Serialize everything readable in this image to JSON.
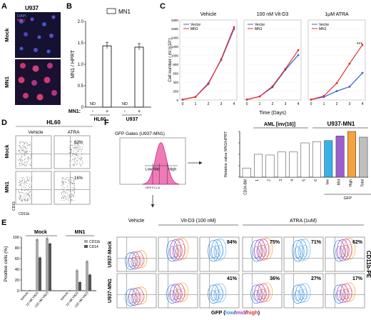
{
  "panels": {
    "A": {
      "letter": "A",
      "cell_line": "U937",
      "legend": [
        "DAPI",
        "MN1"
      ],
      "rows": [
        "Mock",
        "MN1"
      ],
      "legend_colors": [
        "#3b5cff",
        "#ff2a5a"
      ]
    },
    "B": {
      "letter": "B",
      "legend": "MN1",
      "ylabel": "MN1 / HPRT",
      "yticks": [
        "0",
        "0.5",
        "1.0",
        "1.5",
        "2.0"
      ],
      "nd": "ND",
      "row_label": "MN1:",
      "signs": [
        "-",
        "+",
        "-",
        "+"
      ],
      "groups": [
        "HL60",
        "U937"
      ]
    },
    "C": {
      "letter": "C",
      "xlabel": "Time (Days)",
      "ylabel": "Cell number / ml (x10⁵)",
      "legend": [
        "Vector",
        "MN1"
      ],
      "titles": [
        "Vehicle",
        "100 nM Vit-D3",
        "1μM ATRA"
      ],
      "yticks": [
        "0",
        "200",
        "400",
        "600",
        "800",
        "1000",
        "1200",
        "1400",
        "1600",
        "1800"
      ],
      "xticks": [
        "0",
        "1",
        "2",
        "3",
        "4"
      ],
      "sig": "***"
    },
    "D": {
      "letter": "D",
      "cell_line": "HL60",
      "cols": [
        "Vehicle",
        "ATRA"
      ],
      "rows": [
        "Mock",
        "MN1"
      ],
      "pcts": [
        "62%",
        "16%"
      ],
      "ylabel": "CD15",
      "xlabel": "CD11b"
    },
    "E": {
      "letter": "E",
      "groups": [
        "Mock",
        "MN1"
      ],
      "ylabel": "Positive cells (%)",
      "legend": [
        "CD11b",
        "CD14"
      ],
      "yticks": [
        "0",
        "20",
        "40",
        "60",
        "80",
        "100"
      ],
      "xticks": [
        "Vehicle",
        "10 nM VitD3",
        "100 nM VitD3",
        "Vehicle",
        "10 nM VitD3",
        "100 nM VitD3"
      ]
    },
    "F": {
      "letter": "F",
      "gate_title": "GFP Gates (U937-MN1)",
      "gates": [
        "Low",
        "Mid",
        "High"
      ],
      "gate_xlabel": "GFP FL1-A",
      "bar_header_aml": "AML [inv(16)]",
      "bar_header_u937": "U937-MN1",
      "bar_ylabel": "Relative value MN1/HPRT",
      "bar_xticks": [
        "CD34-BM",
        "1",
        "2",
        "3",
        "4",
        "5",
        "6",
        "low",
        "Mid",
        "High",
        "Total"
      ],
      "bar_gfp": "GFP",
      "flow_headers": [
        "Vehicle",
        "Vit-D3 (100 nM)",
        "ATRA (1uM)"
      ],
      "flow_rows": [
        "U937-Mock",
        "U937-MN1"
      ],
      "flow_pcts_mock": [
        "84%",
        "75%",
        "71%",
        "62%"
      ],
      "flow_pcts_mn1": [
        "41%",
        "36%",
        "27%",
        "17%"
      ],
      "flow_ylabel": "CD11b-PE",
      "flow_xlabel": "GFP (",
      "flow_xlabel_low": "low",
      "flow_xlabel_sep1": "/",
      "flow_xlabel_mid": "mid",
      "flow_xlabel_sep2": "/",
      "flow_xlabel_high": "high",
      "flow_xlabel_end": ")"
    }
  },
  "chart_data": [
    {
      "type": "bar",
      "title": "",
      "categories": [
        "HL60 -",
        "HL60 +",
        "U937 -",
        "U937 +"
      ],
      "values": [
        0,
        1.43,
        0,
        1.4
      ],
      "ylim": [
        0,
        2.0
      ],
      "ylabel": "MN1 / HPRT",
      "series": [
        {
          "name": "MN1",
          "values": [
            0,
            1.43,
            0,
            1.4
          ]
        }
      ]
    },
    {
      "type": "line",
      "title": "Vehicle",
      "x": [
        0,
        1,
        2,
        3,
        4
      ],
      "ylim": [
        0,
        1800
      ],
      "series": [
        {
          "name": "Vector",
          "values": [
            10,
            70,
            380,
            900,
            1600
          ]
        },
        {
          "name": "MN1",
          "values": [
            10,
            70,
            360,
            920,
            1640
          ]
        }
      ]
    },
    {
      "type": "line",
      "title": "100 nM Vit-D3",
      "x": [
        0,
        1,
        2,
        3,
        4
      ],
      "ylim": [
        0,
        1800
      ],
      "series": [
        {
          "name": "Vector",
          "values": [
            10,
            80,
            290,
            680,
            1010
          ]
        },
        {
          "name": "MN1",
          "values": [
            10,
            80,
            310,
            700,
            1120
          ]
        }
      ]
    },
    {
      "type": "line",
      "title": "1μM ATRA",
      "x": [
        0,
        1,
        2,
        3,
        4
      ],
      "ylim": [
        0,
        1800
      ],
      "series": [
        {
          "name": "Vector",
          "values": [
            10,
            70,
            200,
            300,
            610
          ]
        },
        {
          "name": "MN1",
          "values": [
            10,
            90,
            380,
            820,
            1240
          ]
        }
      ]
    },
    {
      "type": "bar",
      "title": "",
      "categories": [
        "Vehicle",
        "10 nM VitD3",
        "100 nM VitD3",
        "Vehicle",
        "10 nM VitD3",
        "100 nM VitD3"
      ],
      "ylim": [
        0,
        100
      ],
      "ylabel": "Positive cells (%)",
      "series": [
        {
          "name": "CD11b",
          "values": [
            1,
            96,
            98,
            1,
            38,
            55
          ]
        },
        {
          "name": "CD14",
          "values": [
            1,
            62,
            88,
            1,
            16,
            30
          ]
        }
      ]
    },
    {
      "type": "bar",
      "title": "",
      "categories": [
        "CD34-BM",
        "1",
        "2",
        "3",
        "4",
        "5",
        "6",
        "low",
        "Mid",
        "High",
        "Total"
      ],
      "ylim": [
        0,
        2.0
      ],
      "ylabel": "Relative value MN1/HPRT",
      "values": [
        0.4,
        1.0,
        0.97,
        1.1,
        1.1,
        1.5,
        1.55,
        1.6,
        1.8,
        2.0,
        1.75
      ],
      "colors": [
        "#fff",
        "#fff",
        "#fff",
        "#fff",
        "#fff",
        "#fff",
        "#fff",
        "#3ab0e8",
        "#9b5fd0",
        "#f4a340",
        "#bfbfbf"
      ]
    }
  ]
}
